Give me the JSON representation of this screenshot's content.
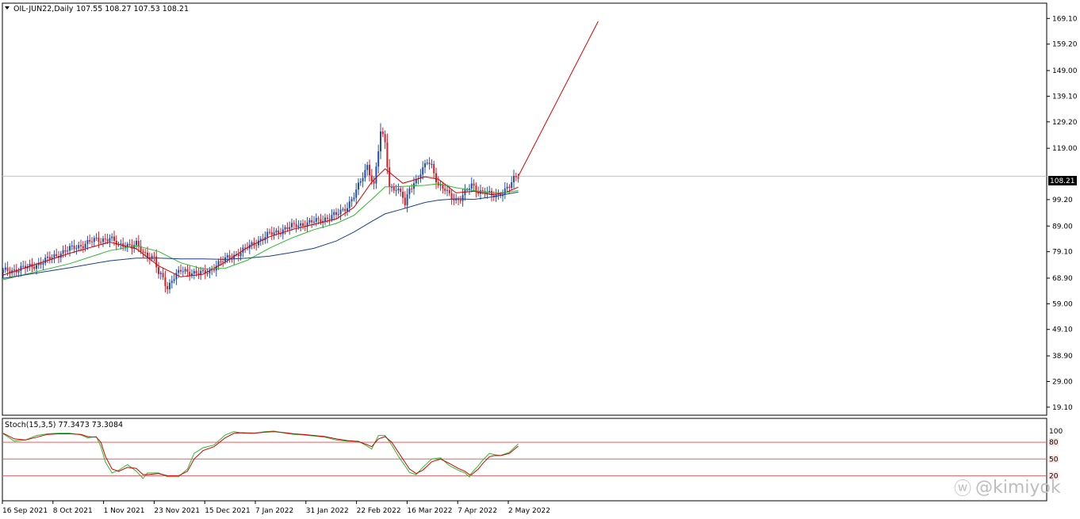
{
  "header": {
    "symbol": "OIL-JUN22,Daily",
    "ohlc": "107.55 108.27 107.53 108.21"
  },
  "last_price_label": "108.21",
  "stoch_label": "Stoch(15,3,5) 77.3473 73.3084",
  "watermark": "@kimiyok",
  "colors": {
    "bull_candle": "#1f4fa8",
    "bear_candle": "#d1202a",
    "ma_red": "#cc0000",
    "ma_green": "#2db82d",
    "ma_blue": "#1a3f8f",
    "projection": "#dd0000",
    "stoch_main": "#2db82d",
    "stoch_signal": "#cc0000",
    "stoch_level": "#e36060"
  },
  "chart_data": [
    {
      "type": "candlestick",
      "title": "OIL-JUN22,Daily",
      "ylim": [
        16.0,
        175.0
      ],
      "y_ticks": [
        "169.10",
        "159.20",
        "149.00",
        "139.10",
        "129.20",
        "119.00",
        "99.20",
        "89.00",
        "79.10",
        "68.90",
        "59.00",
        "49.10",
        "38.90",
        "29.00",
        "19.10"
      ],
      "x_ticks": [
        "16 Sep 2021",
        "8 Oct 2021",
        "1 Nov 2021",
        "23 Nov 2021",
        "15 Dec 2021",
        "7 Jan 2022",
        "31 Jan 2022",
        "22 Feb 2022",
        "16 Mar 2022",
        "7 Apr 2022",
        "2 May 2022"
      ],
      "grid": false,
      "last_price": 108.21,
      "close_path": [
        [
          0,
          71.5
        ],
        [
          6,
          72.2
        ],
        [
          12,
          73.3
        ],
        [
          18,
          75.1
        ],
        [
          24,
          77.9
        ],
        [
          30,
          80.1
        ],
        [
          36,
          81.9
        ],
        [
          42,
          83.7
        ],
        [
          48,
          84.2
        ],
        [
          52,
          81.5
        ],
        [
          55,
          82.3
        ],
        [
          58,
          80.9
        ],
        [
          60,
          81.8
        ],
        [
          63,
          78.9
        ],
        [
          68,
          76.5
        ],
        [
          70,
          70.2
        ],
        [
          72,
          69.0
        ],
        [
          74,
          65.0
        ],
        [
          76,
          68.6
        ],
        [
          80,
          71.6
        ],
        [
          86,
          71.2
        ],
        [
          90,
          70.6
        ],
        [
          93,
          71.5
        ],
        [
          96,
          74.2
        ],
        [
          102,
          76.9
        ],
        [
          108,
          79.5
        ],
        [
          114,
          82.9
        ],
        [
          120,
          85.8
        ],
        [
          126,
          87.6
        ],
        [
          132,
          89.4
        ],
        [
          138,
          90.2
        ],
        [
          144,
          91.7
        ],
        [
          150,
          93.2
        ],
        [
          155,
          96.8
        ],
        [
          158,
          100.5
        ],
        [
          161,
          106.2
        ],
        [
          164,
          112.5
        ],
        [
          167,
          104.6
        ],
        [
          170,
          124.9
        ],
        [
          172,
          121.5
        ],
        [
          174,
          104.2
        ],
        [
          177,
          103.4
        ],
        [
          180,
          100.2
        ],
        [
          181,
          96.8
        ],
        [
          183,
          103.9
        ],
        [
          186,
          106.7
        ],
        [
          189,
          110.4
        ],
        [
          191,
          113.9
        ],
        [
          193,
          112.4
        ],
        [
          196,
          104.8
        ],
        [
          199,
          102.8
        ],
        [
          201,
          100.7
        ],
        [
          204,
          99.1
        ],
        [
          206,
          99.9
        ],
        [
          209,
          102.8
        ],
        [
          211,
          104.6
        ],
        [
          214,
          102.6
        ],
        [
          217,
          102.4
        ],
        [
          220,
          100.4
        ],
        [
          223,
          101.0
        ],
        [
          226,
          103.1
        ],
        [
          228,
          104.2
        ],
        [
          230,
          106.9
        ],
        [
          232,
          108.2
        ]
      ],
      "series": [
        {
          "values_path": [
            [
              0,
              70.1
            ],
            [
              30,
              78.5
            ],
            [
              48,
              82.8
            ],
            [
              60,
              80.2
            ],
            [
              70,
              73.6
            ],
            [
              80,
              69.4
            ],
            [
              90,
              70.4
            ],
            [
              100,
              75.0
            ],
            [
              110,
              80.7
            ],
            [
              120,
              84.9
            ],
            [
              130,
              87.6
            ],
            [
              140,
              89.7
            ],
            [
              150,
              91.7
            ],
            [
              158,
              96.2
            ],
            [
              166,
              106.0
            ],
            [
              172,
              111.1
            ],
            [
              180,
              105.5
            ],
            [
              190,
              108.0
            ],
            [
              196,
              107.1
            ],
            [
              204,
              101.8
            ],
            [
              212,
              102.4
            ],
            [
              220,
              101.1
            ],
            [
              226,
              101.8
            ],
            [
              232,
              104.0
            ]
          ]
        },
        {
          "values_path": [
            [
              0,
              68.3
            ],
            [
              30,
              74.5
            ],
            [
              48,
              79.5
            ],
            [
              60,
              81.4
            ],
            [
              70,
              79.2
            ],
            [
              80,
              74.8
            ],
            [
              90,
              72.4
            ],
            [
              100,
              72.7
            ],
            [
              110,
              75.8
            ],
            [
              120,
              80.5
            ],
            [
              130,
              84.4
            ],
            [
              140,
              87.6
            ],
            [
              150,
              90.0
            ],
            [
              158,
              93.1
            ],
            [
              166,
              99.3
            ],
            [
              172,
              104.1
            ],
            [
              180,
              104.3
            ],
            [
              190,
              104.7
            ],
            [
              196,
              105.3
            ],
            [
              204,
              103.8
            ],
            [
              212,
              102.7
            ],
            [
              220,
              101.8
            ],
            [
              226,
              101.9
            ],
            [
              232,
              102.7
            ]
          ]
        },
        {
          "values_path": [
            [
              0,
              68.8
            ],
            [
              30,
              72.9
            ],
            [
              48,
              75.6
            ],
            [
              60,
              76.6
            ],
            [
              70,
              76.6
            ],
            [
              80,
              76.3
            ],
            [
              90,
              76.3
            ],
            [
              100,
              76.1
            ],
            [
              110,
              76.6
            ],
            [
              120,
              77.4
            ],
            [
              130,
              78.8
            ],
            [
              140,
              80.4
            ],
            [
              150,
              83.2
            ],
            [
              158,
              86.7
            ],
            [
              166,
              90.8
            ],
            [
              172,
              93.7
            ],
            [
              180,
              95.6
            ],
            [
              190,
              98.1
            ],
            [
              196,
              99.0
            ],
            [
              204,
              99.5
            ],
            [
              212,
              99.3
            ],
            [
              220,
              100.2
            ],
            [
              226,
              101.2
            ],
            [
              232,
              102.1
            ]
          ]
        }
      ],
      "projection_line": [
        [
          232,
          108.2
        ],
        [
          268,
          168.0
        ]
      ]
    },
    {
      "type": "line",
      "title": "Stoch(15,3,5) 77.3473 73.3084",
      "ylim": [
        0,
        100
      ],
      "levels": [
        "100",
        "80",
        "50",
        "20"
      ],
      "series": [
        {
          "values_path": [
            [
              0,
              95
            ],
            [
              5,
              82
            ],
            [
              10,
              84
            ],
            [
              15,
              92
            ],
            [
              20,
              95
            ],
            [
              25,
              96
            ],
            [
              30,
              96
            ],
            [
              35,
              93
            ],
            [
              38,
              88
            ],
            [
              42,
              90
            ],
            [
              44,
              72
            ],
            [
              46,
              45
            ],
            [
              49,
              25
            ],
            [
              52,
              30
            ],
            [
              56,
              40
            ],
            [
              60,
              28
            ],
            [
              63,
              15
            ],
            [
              65,
              25
            ],
            [
              70,
              25
            ],
            [
              74,
              18
            ],
            [
              79,
              18
            ],
            [
              83,
              32
            ],
            [
              86,
              60
            ],
            [
              90,
              70
            ],
            [
              95,
              75
            ],
            [
              100,
              93
            ],
            [
              104,
              99
            ],
            [
              108,
              96
            ],
            [
              113,
              96
            ],
            [
              118,
              99
            ],
            [
              122,
              100
            ],
            [
              127,
              96
            ],
            [
              131,
              94
            ],
            [
              135,
              93
            ],
            [
              140,
              91
            ],
            [
              145,
              89
            ],
            [
              150,
              84
            ],
            [
              155,
              82
            ],
            [
              160,
              82
            ],
            [
              163,
              75
            ],
            [
              166,
              68
            ],
            [
              169,
              92
            ],
            [
              172,
              92
            ],
            [
              175,
              75
            ],
            [
              178,
              55
            ],
            [
              183,
              26
            ],
            [
              186,
              22
            ],
            [
              189,
              35
            ],
            [
              193,
              50
            ],
            [
              197,
              52
            ],
            [
              201,
              38
            ],
            [
              205,
              30
            ],
            [
              208,
              25
            ],
            [
              210,
              18
            ],
            [
              211,
              25
            ],
            [
              214,
              38
            ],
            [
              216,
              48
            ],
            [
              219,
              60
            ],
            [
              221,
              58
            ],
            [
              224,
              56
            ],
            [
              228,
              62
            ],
            [
              232,
              77
            ]
          ]
        },
        {
          "values_path": [
            [
              0,
              96
            ],
            [
              5,
              86
            ],
            [
              10,
              84
            ],
            [
              15,
              89
            ],
            [
              20,
              94
            ],
            [
              25,
              95
            ],
            [
              30,
              95
            ],
            [
              35,
              94
            ],
            [
              38,
              90
            ],
            [
              42,
              89
            ],
            [
              44,
              80
            ],
            [
              46,
              55
            ],
            [
              49,
              32
            ],
            [
              52,
              28
            ],
            [
              56,
              35
            ],
            [
              60,
              33
            ],
            [
              63,
              22
            ],
            [
              65,
              22
            ],
            [
              70,
              24
            ],
            [
              74,
              20
            ],
            [
              79,
              20
            ],
            [
              83,
              28
            ],
            [
              86,
              50
            ],
            [
              90,
              65
            ],
            [
              95,
              72
            ],
            [
              100,
              88
            ],
            [
              104,
              96
            ],
            [
              108,
              97
            ],
            [
              113,
              96
            ],
            [
              118,
              98
            ],
            [
              122,
              99
            ],
            [
              127,
              97
            ],
            [
              131,
              95
            ],
            [
              135,
              94
            ],
            [
              140,
              92
            ],
            [
              145,
              90
            ],
            [
              150,
              86
            ],
            [
              155,
              83
            ],
            [
              160,
              81
            ],
            [
              163,
              77
            ],
            [
              166,
              72
            ],
            [
              169,
              86
            ],
            [
              172,
              90
            ],
            [
              175,
              80
            ],
            [
              178,
              62
            ],
            [
              183,
              32
            ],
            [
              186,
              24
            ],
            [
              189,
              30
            ],
            [
              193,
              45
            ],
            [
              197,
              50
            ],
            [
              201,
              42
            ],
            [
              205,
              33
            ],
            [
              208,
              28
            ],
            [
              210,
              22
            ],
            [
              211,
              22
            ],
            [
              214,
              32
            ],
            [
              216,
              42
            ],
            [
              219,
              54
            ],
            [
              221,
              56
            ],
            [
              224,
              56
            ],
            [
              228,
              60
            ],
            [
              232,
              73
            ]
          ]
        }
      ]
    }
  ]
}
